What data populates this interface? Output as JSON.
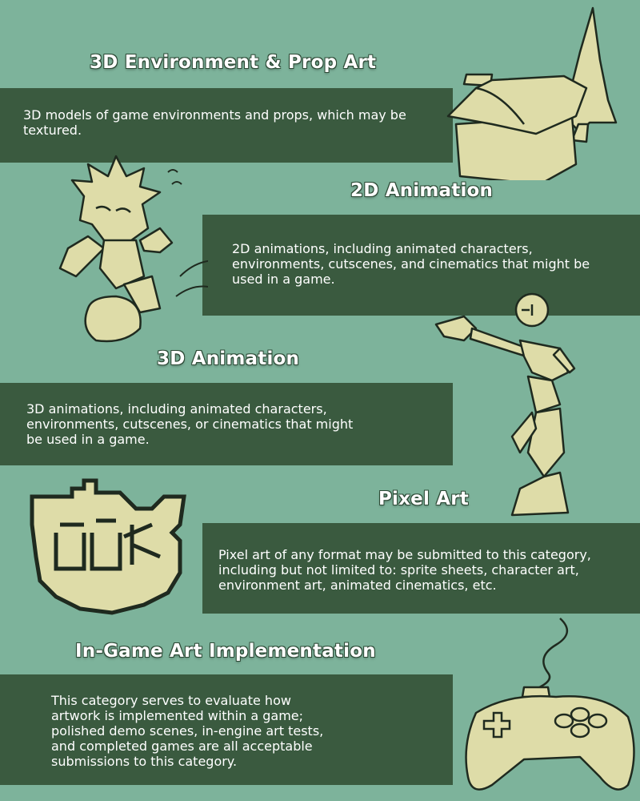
{
  "sections": [
    {
      "title": "3D Environment & Prop Art",
      "description": "3D models of game environments and props, which may be textured.",
      "icon": "house-and-tree-icon"
    },
    {
      "title": "2D Animation",
      "description": "2D animations, including animated characters, environments, cutscenes, and cinematics that might be used in a game.",
      "icon": "cartoon-character-icon"
    },
    {
      "title": "3D Animation",
      "description": "3D animations, including animated characters, environments, cutscenes, or cinematics that might be used in a game.",
      "icon": "low-poly-figure-icon"
    },
    {
      "title": "Pixel Art",
      "description": "Pixel art of any format may be submitted to this category, including but not limited to: sprite sheets, character art, environment art, animated cinematics, etc.",
      "icon": "pixel-creature-icon"
    },
    {
      "title": "In-Game Art Implementation",
      "description": "This category serves to evaluate how artwork is implemented within a game; polished demo scenes, in-engine art tests, and completed games are all acceptable submissions to this category.",
      "icon": "game-controller-icon"
    }
  ],
  "colors": {
    "background": "#7db39b",
    "panel": "#3a5a3f",
    "illustration_fill": "#dedca8",
    "outline": "#1f2a1f"
  }
}
